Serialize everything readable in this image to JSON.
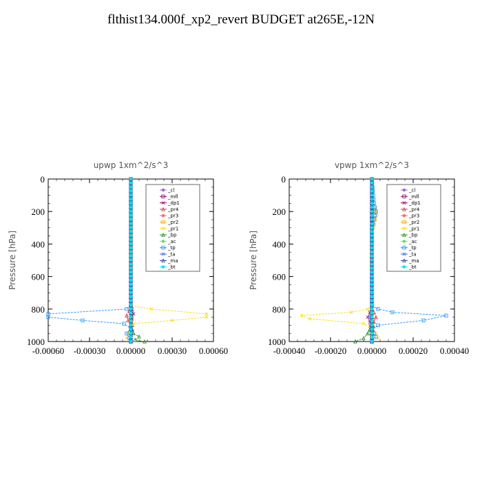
{
  "title": "flthist134.000f_xp2_revert  BUDGET at265E,-12N",
  "chart_data": [
    {
      "type": "line",
      "title": "upwp   1xm^2/s^3",
      "ylabel": "Pressure [hPa]",
      "xlim": [
        -0.0006,
        0.0006
      ],
      "ylim": [
        0,
        1000
      ],
      "y_inverted": true,
      "xticks": [
        "-0.00060",
        "-0.00030",
        "0.00000",
        "0.00030",
        "0.00060"
      ],
      "yticks": [
        "0",
        "200",
        "400",
        "600",
        "800",
        "1000"
      ],
      "legend": "top-right",
      "series": [
        {
          "name": "_cl",
          "color": "#9966cc",
          "x": [
            0.0,
            0.0,
            0.0
          ],
          "y": [
            0,
            500,
            1000
          ]
        },
        {
          "name": "_mfl",
          "color": "#800080",
          "x": [
            0.0,
            0.0,
            0.0
          ],
          "y": [
            0,
            500,
            1000
          ]
        },
        {
          "name": "_dp1",
          "color": "#990066",
          "x": [
            0.0,
            0.0,
            1e-05,
            2e-05,
            1e-05,
            0.0,
            0.0
          ],
          "y": [
            0,
            780,
            800,
            830,
            860,
            900,
            1000
          ]
        },
        {
          "name": "_pr4",
          "color": "#cc3344",
          "x": [
            0.0,
            -1e-05,
            -3e-05,
            -2e-05,
            1e-05,
            0.0
          ],
          "y": [
            780,
            810,
            840,
            870,
            900,
            1000
          ]
        },
        {
          "name": "_pr3",
          "color": "#ff6666",
          "x": [
            0.0,
            0.0,
            0.0
          ],
          "y": [
            0,
            700,
            1000
          ]
        },
        {
          "name": "_pr2",
          "color": "#ffaa00",
          "x": [
            0.0,
            0.0,
            0.0
          ],
          "y": [
            0,
            700,
            1000
          ]
        },
        {
          "name": "_pr1",
          "color": "#ffd700",
          "x": [
            0.0,
            0.0,
            0.00015,
            0.00055,
            0.00055,
            0.0003,
            2e-05,
            0.0,
            -2e-05,
            -3e-05,
            0.0
          ],
          "y": [
            0,
            780,
            800,
            830,
            850,
            870,
            890,
            920,
            950,
            980,
            1000
          ]
        },
        {
          "name": "_bp",
          "color": "#228b22",
          "x": [
            0.0,
            0.0,
            2e-05,
            6e-05,
            3e-05,
            0.0001
          ],
          "y": [
            0,
            900,
            950,
            970,
            990,
            1000
          ]
        },
        {
          "name": "_ac",
          "color": "#66dd66",
          "x": [
            0.0,
            0.0,
            0.0
          ],
          "y": [
            0,
            500,
            1000
          ]
        },
        {
          "name": "_tp",
          "color": "#1e90ff",
          "x": [
            0.0,
            0.0,
            -3e-05,
            -0.0006,
            -0.0006,
            -0.00035,
            -5e-05,
            0.0,
            -3e-05,
            -1e-05,
            0.0
          ],
          "y": [
            0,
            780,
            800,
            830,
            850,
            870,
            890,
            920,
            950,
            980,
            1000
          ]
        },
        {
          "name": "_ta",
          "color": "#4169e1",
          "x": [
            0.0,
            0.0,
            1e-05,
            0.0,
            1e-05,
            0.0
          ],
          "y": [
            0,
            780,
            820,
            900,
            950,
            1000
          ]
        },
        {
          "name": "_ma",
          "color": "#333399",
          "x": [
            0.0,
            0.0,
            0.0
          ],
          "y": [
            0,
            500,
            1000
          ]
        },
        {
          "name": "_bt",
          "color": "#00e5ee",
          "x": [
            0.0,
            0.0,
            0.0
          ],
          "y": [
            0,
            500,
            1000
          ]
        }
      ]
    },
    {
      "type": "line",
      "title": "vpwp   1xm^2/s^3",
      "ylabel": "Pressure [hPa]",
      "xlim": [
        -0.0004,
        0.0004
      ],
      "ylim": [
        0,
        1000
      ],
      "y_inverted": true,
      "xticks": [
        "-0.00040",
        "-0.00020",
        "0.00000",
        "0.00020",
        "0.00040"
      ],
      "yticks": [
        "0",
        "200",
        "400",
        "600",
        "800",
        "1000"
      ],
      "legend": "top-right",
      "series": [
        {
          "name": "_cl",
          "color": "#9966cc",
          "x": [
            0.0,
            0.0,
            0.0
          ],
          "y": [
            0,
            500,
            1000
          ]
        },
        {
          "name": "_mfl",
          "color": "#800080",
          "x": [
            0.0,
            0.0,
            0.0
          ],
          "y": [
            0,
            500,
            1000
          ]
        },
        {
          "name": "_dp1",
          "color": "#990066",
          "x": [
            0.0,
            0.0,
            -1e-05,
            -2e-05,
            -1e-05,
            0.0
          ],
          "y": [
            0,
            790,
            820,
            850,
            880,
            1000
          ]
        },
        {
          "name": "_pr4",
          "color": "#cc3344",
          "x": [
            0.0,
            1e-05,
            2e-05,
            1e-05,
            0.0
          ],
          "y": [
            790,
            820,
            850,
            880,
            1000
          ]
        },
        {
          "name": "_pr3",
          "color": "#ff6666",
          "x": [
            0.0,
            0.0,
            0.0
          ],
          "y": [
            0,
            700,
            1000
          ]
        },
        {
          "name": "_pr2",
          "color": "#ffaa00",
          "x": [
            0.0,
            1e-05,
            2e-05,
            1e-05,
            0.0,
            0.0
          ],
          "y": [
            0,
            150,
            220,
            280,
            320,
            1000
          ]
        },
        {
          "name": "_pr1",
          "color": "#ffd700",
          "x": [
            0.0,
            -2e-05,
            -0.0001,
            -0.00034,
            -0.0003,
            -4e-05,
            0.0,
            2e-05,
            3e-05,
            0.0
          ],
          "y": [
            780,
            800,
            820,
            840,
            860,
            890,
            920,
            950,
            980,
            1000
          ]
        },
        {
          "name": "_bp",
          "color": "#228b22",
          "x": [
            0.0,
            0.0,
            -2e-05,
            -4e-05,
            -8e-05
          ],
          "y": [
            0,
            900,
            950,
            980,
            1000
          ]
        },
        {
          "name": "_ac",
          "color": "#66dd66",
          "x": [
            0.0,
            0.0,
            0.0
          ],
          "y": [
            0,
            500,
            1000
          ]
        },
        {
          "name": "_tp",
          "color": "#1e90ff",
          "x": [
            0.0,
            1e-05,
            2e-05,
            1e-05,
            0.0,
            0.0,
            3e-05,
            0.0001,
            0.00036,
            0.00025,
            3e-05,
            0.0,
            2e-05,
            0.0
          ],
          "y": [
            0,
            150,
            200,
            250,
            300,
            780,
            800,
            820,
            840,
            870,
            900,
            930,
            970,
            1000
          ]
        },
        {
          "name": "_ta",
          "color": "#4169e1",
          "x": [
            0.0,
            0.0,
            -1e-05,
            0.0,
            0.0
          ],
          "y": [
            0,
            780,
            850,
            920,
            1000
          ]
        },
        {
          "name": "_ma",
          "color": "#333399",
          "x": [
            0.0,
            0.0,
            0.0
          ],
          "y": [
            0,
            500,
            1000
          ]
        },
        {
          "name": "_bt",
          "color": "#00e5ee",
          "x": [
            0.0,
            0.0,
            0.0
          ],
          "y": [
            0,
            500,
            1000
          ]
        }
      ]
    }
  ]
}
